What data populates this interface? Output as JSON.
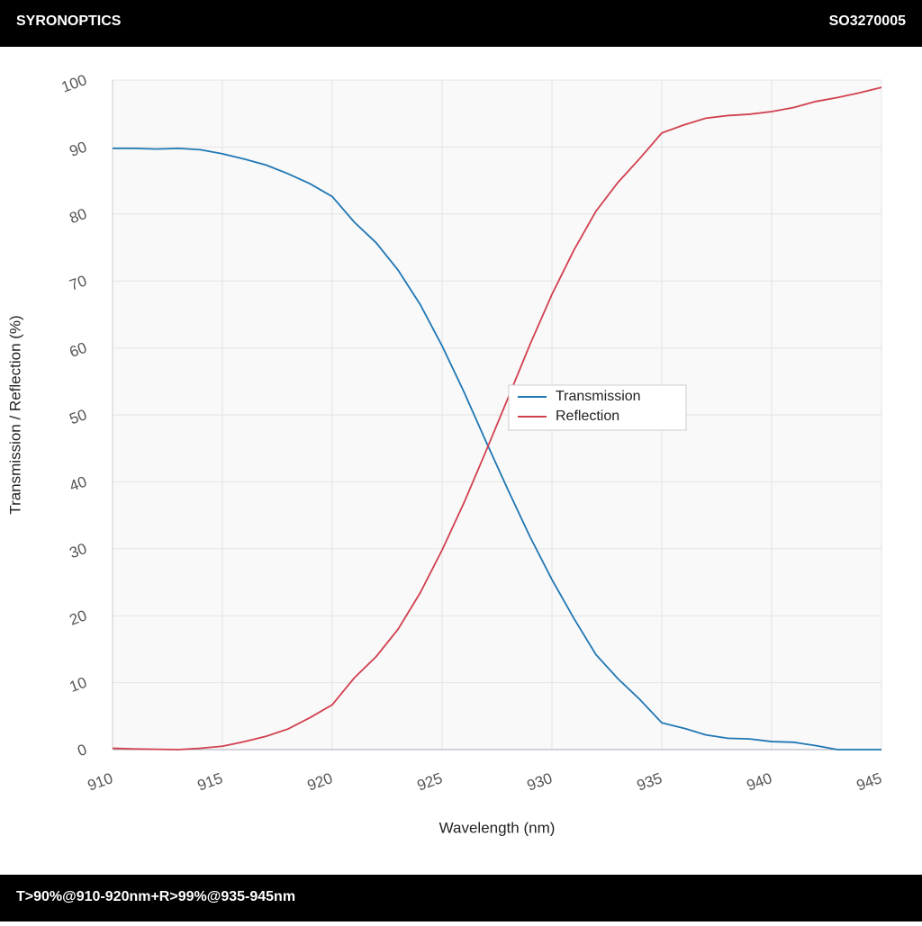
{
  "header": {
    "brand": "SYRONOPTICS",
    "code": "SO3270005"
  },
  "footer": {
    "text": "T>90%@910-920nm+R>99%@935-945nm"
  },
  "chart_data": {
    "type": "line",
    "x_label": "Wavelength (nm)",
    "y_label": "Transmission / Reflection (%)",
    "x": [
      910,
      911,
      912,
      913,
      914,
      915,
      916,
      917,
      918,
      919,
      920,
      921,
      922,
      923,
      924,
      925,
      926,
      927,
      928,
      929,
      930,
      931,
      932,
      933,
      934,
      935,
      936,
      937,
      938,
      939,
      940,
      941,
      942,
      943,
      944,
      945
    ],
    "series": [
      {
        "name": "Transmission",
        "color": "#1f77b4",
        "values": [
          89.8,
          89.8,
          89.7,
          89.8,
          89.6,
          89.0,
          88.2,
          87.3,
          86.0,
          84.5,
          82.6,
          78.8,
          75.7,
          71.6,
          66.5,
          60.3,
          53.4,
          46.0,
          38.8,
          31.8,
          25.4,
          19.6,
          14.2,
          10.6,
          7.5,
          4.0,
          3.2,
          2.2,
          1.7,
          1.6,
          1.2,
          1.1,
          0.6,
          0,
          0,
          0
        ]
      },
      {
        "name": "Reflection",
        "color": "#d1404f",
        "values": [
          0.2,
          0.1,
          0.05,
          0,
          0.2,
          0.5,
          1.2,
          2.0,
          3.1,
          4.8,
          6.7,
          10.7,
          13.9,
          18.0,
          23.4,
          29.8,
          36.9,
          44.6,
          52.5,
          60.5,
          68.0,
          74.6,
          80.4,
          84.7,
          88.3,
          92.1,
          93.3,
          94.3,
          94.7,
          94.9,
          95.3,
          95.9,
          96.8,
          97.4,
          98.1,
          98.9
        ]
      }
    ],
    "xlim": [
      910,
      945
    ],
    "xticks": [
      910,
      915,
      920,
      925,
      930,
      935,
      940,
      945
    ],
    "ylim": [
      0,
      100
    ],
    "yticks": [
      0,
      10,
      20,
      30,
      40,
      50,
      60,
      70,
      80,
      90,
      100
    ],
    "grid": true,
    "legend": "center"
  }
}
